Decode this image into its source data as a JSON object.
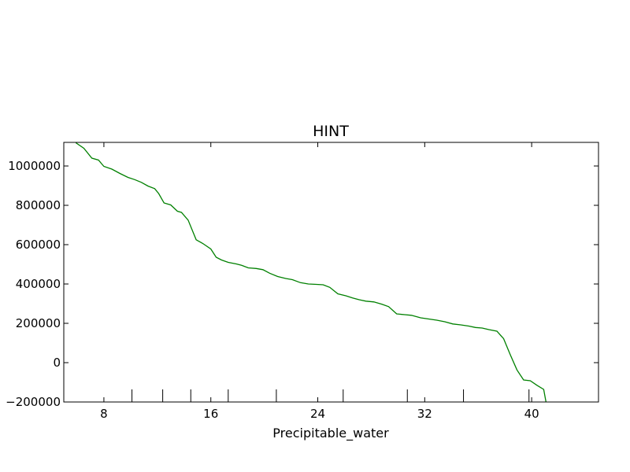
{
  "chart_data": {
    "type": "line",
    "title": "HINT",
    "xlabel": "Precipitable_water",
    "ylabel": "",
    "xlim": [
      5,
      45
    ],
    "ylim": [
      -200000,
      1120000
    ],
    "xticks": [
      8,
      16,
      24,
      32,
      40
    ],
    "xtick_labels": [
      "8",
      "16",
      "24",
      "32",
      "40"
    ],
    "yticks": [
      -200000,
      0,
      200000,
      400000,
      600000,
      800000,
      1000000
    ],
    "ytick_labels": [
      "−200000",
      "0",
      "200000",
      "400000",
      "600000",
      "800000",
      "1000000"
    ],
    "rug_x": [
      10.1,
      12.4,
      14.5,
      17.3,
      20.9,
      25.9,
      30.7,
      34.9,
      39.8
    ],
    "grid": false,
    "series": [
      {
        "color": "#008000",
        "x": [
          5.9,
          6.5,
          7.1,
          7.6,
          8.0,
          8.6,
          9.2,
          9.8,
          10.3,
          10.8,
          11.3,
          11.8,
          12.1,
          12.5,
          13.0,
          13.5,
          13.8,
          14.3,
          14.9,
          15.4,
          16.0,
          16.4,
          16.8,
          17.3,
          17.9,
          18.3,
          18.8,
          19.4,
          19.9,
          20.4,
          21.0,
          21.6,
          22.1,
          22.7,
          23.3,
          23.9,
          24.4,
          24.9,
          25.5,
          26.1,
          26.6,
          27.1,
          27.6,
          28.2,
          28.8,
          29.3,
          29.9,
          30.5,
          31.0,
          31.7,
          32.3,
          32.9,
          33.5,
          34.1,
          34.7,
          35.3,
          35.8,
          36.3,
          36.8,
          37.4,
          37.9,
          38.4,
          38.9,
          39.4,
          39.9,
          40.4,
          40.9,
          41.1
        ],
        "values": [
          1118000,
          1090000,
          1040000,
          1030000,
          998000,
          984000,
          962000,
          942000,
          931000,
          917000,
          898000,
          885000,
          860000,
          812000,
          802000,
          770000,
          764000,
          725000,
          625000,
          606000,
          578000,
          536000,
          522000,
          510000,
          502000,
          495000,
          482000,
          479000,
          473000,
          455000,
          438000,
          428000,
          422000,
          407000,
          400000,
          398000,
          396000,
          383000,
          350000,
          340000,
          329000,
          320000,
          313000,
          309000,
          297000,
          285000,
          248000,
          244000,
          241000,
          228000,
          222000,
          216000,
          208000,
          197000,
          192000,
          186000,
          179000,
          176000,
          168000,
          160000,
          122000,
          40000,
          -37000,
          -88000,
          -92000,
          -115000,
          -136000,
          -210000
        ]
      }
    ]
  }
}
